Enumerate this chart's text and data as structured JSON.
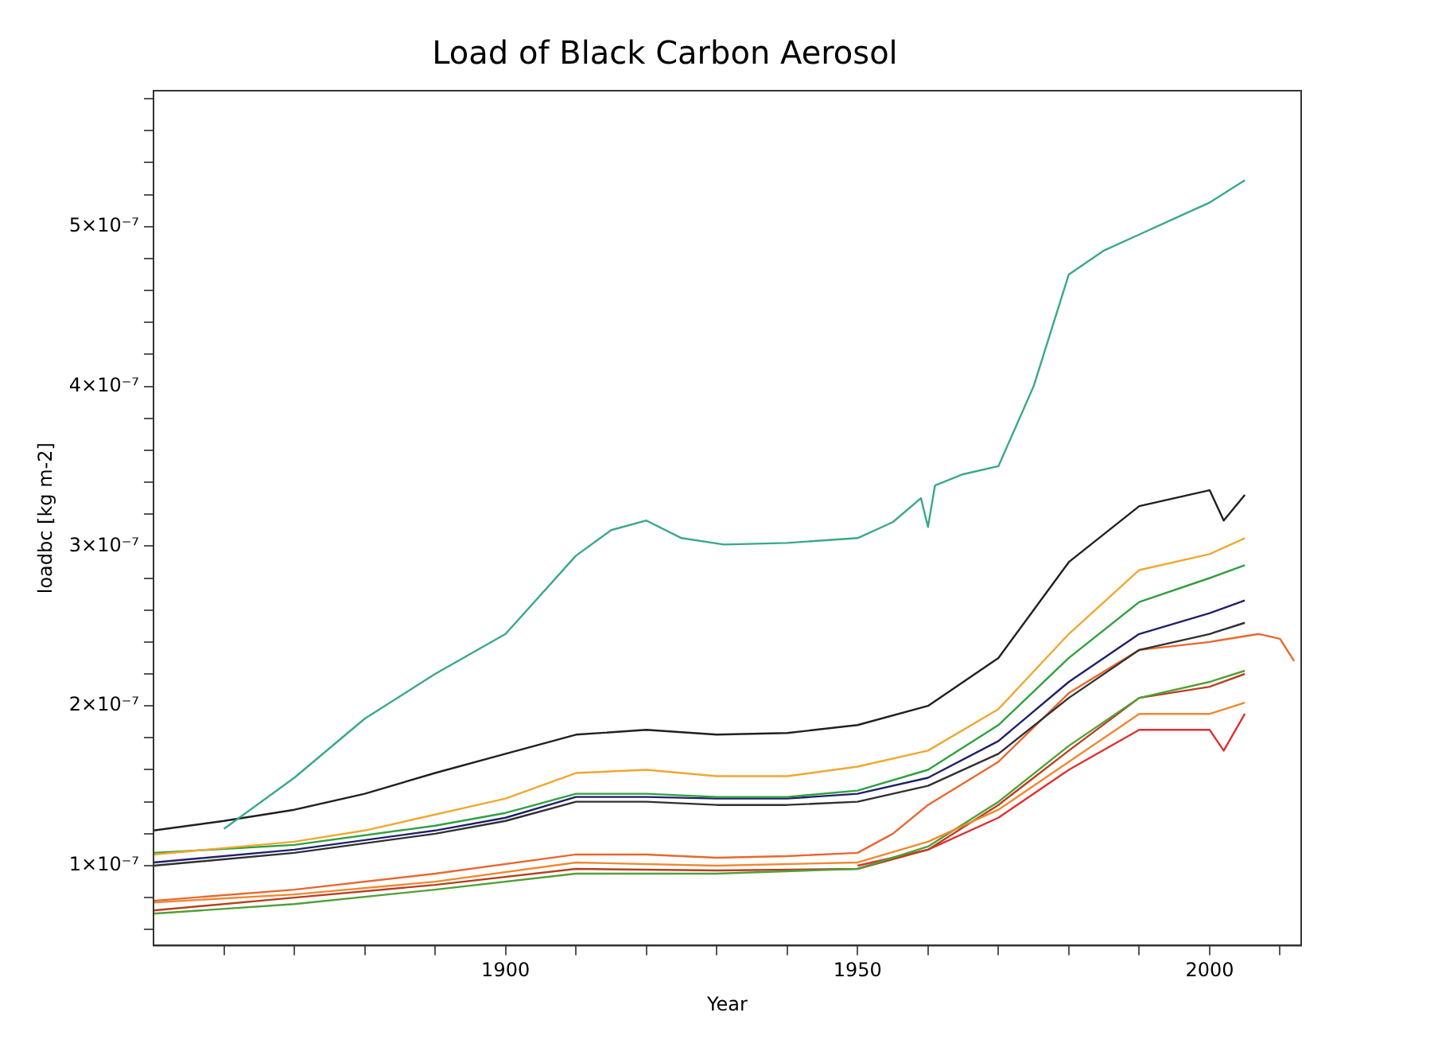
{
  "chart_data": {
    "type": "line",
    "title": "Load of Black Carbon Aerosol",
    "xlabel": "Year",
    "ylabel": "loadbc [kg m-2]",
    "grid": false,
    "legend": false,
    "marker": "none",
    "line_style": "solid",
    "xlim": [
      1850,
      2013
    ],
    "ylim": [
      5e-08,
      5.85e-07
    ],
    "xticks": [
      {
        "value": 1860,
        "label": null
      },
      {
        "value": 1870,
        "label": null
      },
      {
        "value": 1880,
        "label": null
      },
      {
        "value": 1890,
        "label": null
      },
      1900,
      {
        "value": 1910,
        "label": null
      },
      {
        "value": 1920,
        "label": null
      },
      {
        "value": 1930,
        "label": null
      },
      {
        "value": 1940,
        "label": null
      },
      1950,
      {
        "value": 1960,
        "label": null
      },
      {
        "value": 1970,
        "label": null
      },
      {
        "value": 1980,
        "label": null
      },
      {
        "value": 1990,
        "label": null
      },
      2000,
      {
        "value": 2010,
        "label": null
      }
    ],
    "yticks": [
      {
        "value": 6e-08,
        "label": null
      },
      {
        "value": 8e-08,
        "label": null
      },
      {
        "value": 1e-07,
        "label": "1×10⁻⁷"
      },
      {
        "value": 1.2e-07,
        "label": null
      },
      {
        "value": 1.4e-07,
        "label": null
      },
      {
        "value": 1.6e-07,
        "label": null
      },
      {
        "value": 1.8e-07,
        "label": null
      },
      {
        "value": 2e-07,
        "label": "2×10⁻⁷"
      },
      {
        "value": 2.2e-07,
        "label": null
      },
      {
        "value": 2.4e-07,
        "label": null
      },
      {
        "value": 2.6e-07,
        "label": null
      },
      {
        "value": 2.8e-07,
        "label": null
      },
      {
        "value": 3e-07,
        "label": "3×10⁻⁷"
      },
      {
        "value": 3.2e-07,
        "label": null
      },
      {
        "value": 3.4e-07,
        "label": null
      },
      {
        "value": 3.6e-07,
        "label": null
      },
      {
        "value": 3.8e-07,
        "label": null
      },
      {
        "value": 4e-07,
        "label": "4×10⁻⁷"
      },
      {
        "value": 4.2e-07,
        "label": null
      },
      {
        "value": 4.4e-07,
        "label": null
      },
      {
        "value": 4.6e-07,
        "label": null
      },
      {
        "value": 4.8e-07,
        "label": null
      },
      {
        "value": 5e-07,
        "label": "5×10⁻⁷"
      },
      {
        "value": 5.2e-07,
        "label": null
      },
      {
        "value": 5.4e-07,
        "label": null
      },
      {
        "value": 5.6e-07,
        "label": null
      },
      {
        "value": 5.8e-07,
        "label": null
      }
    ],
    "series": [
      {
        "color": "#3aa88a",
        "x": [
          1860,
          1870,
          1880,
          1890,
          1900,
          1910,
          1915,
          1920,
          1925,
          1931,
          1940,
          1950,
          1955,
          1959,
          1960,
          1961,
          1965,
          1970,
          1975,
          1980,
          1985,
          1990,
          1995,
          2000,
          2005
        ],
        "values": [
          1.23e-07,
          1.55e-07,
          1.92e-07,
          2.2e-07,
          2.45e-07,
          2.94e-07,
          3.1e-07,
          3.16e-07,
          3.05e-07,
          3.01e-07,
          3.02e-07,
          3.05e-07,
          3.15e-07,
          3.3e-07,
          3.12e-07,
          3.38e-07,
          3.45e-07,
          3.5e-07,
          4e-07,
          4.7e-07,
          4.85e-07,
          4.95e-07,
          5.05e-07,
          5.15e-07,
          5.29e-07
        ]
      },
      {
        "color": "#202020",
        "x": [
          1850,
          1860,
          1870,
          1880,
          1890,
          1900,
          1910,
          1920,
          1930,
          1940,
          1950,
          1960,
          1970,
          1975,
          1980,
          1990,
          2000,
          2002,
          2005
        ],
        "values": [
          1.22e-07,
          1.28e-07,
          1.35e-07,
          1.45e-07,
          1.58e-07,
          1.7e-07,
          1.82e-07,
          1.85e-07,
          1.82e-07,
          1.83e-07,
          1.88e-07,
          2e-07,
          2.3e-07,
          2.6e-07,
          2.9e-07,
          3.25e-07,
          3.35e-07,
          3.16e-07,
          3.32e-07
        ]
      },
      {
        "color": "#f0a830",
        "x": [
          1850,
          1870,
          1880,
          1890,
          1900,
          1910,
          1920,
          1930,
          1940,
          1950,
          1960,
          1970,
          1980,
          1990,
          2000,
          2005
        ],
        "values": [
          1.07e-07,
          1.15e-07,
          1.22e-07,
          1.32e-07,
          1.42e-07,
          1.58e-07,
          1.6e-07,
          1.56e-07,
          1.56e-07,
          1.62e-07,
          1.72e-07,
          1.98e-07,
          2.45e-07,
          2.85e-07,
          2.95e-07,
          3.05e-07
        ]
      },
      {
        "color": "#30a040",
        "x": [
          1850,
          1870,
          1890,
          1900,
          1910,
          1920,
          1930,
          1940,
          1950,
          1960,
          1970,
          1980,
          1990,
          2000,
          2005
        ],
        "values": [
          1.08e-07,
          1.13e-07,
          1.25e-07,
          1.33e-07,
          1.45e-07,
          1.45e-07,
          1.43e-07,
          1.43e-07,
          1.47e-07,
          1.6e-07,
          1.88e-07,
          2.3e-07,
          2.65e-07,
          2.8e-07,
          2.88e-07
        ]
      },
      {
        "color": "#202068",
        "x": [
          1850,
          1870,
          1890,
          1900,
          1910,
          1920,
          1930,
          1940,
          1950,
          1960,
          1970,
          1980,
          1990,
          2000,
          2005
        ],
        "values": [
          1.02e-07,
          1.1e-07,
          1.22e-07,
          1.3e-07,
          1.43e-07,
          1.43e-07,
          1.42e-07,
          1.42e-07,
          1.45e-07,
          1.55e-07,
          1.78e-07,
          2.15e-07,
          2.45e-07,
          2.58e-07,
          2.66e-07
        ]
      },
      {
        "color": "#303030",
        "x": [
          1850,
          1870,
          1890,
          1900,
          1910,
          1920,
          1930,
          1940,
          1950,
          1960,
          1970,
          1980,
          1990,
          2000,
          2005
        ],
        "values": [
          1e-07,
          1.08e-07,
          1.2e-07,
          1.28e-07,
          1.4e-07,
          1.4e-07,
          1.38e-07,
          1.38e-07,
          1.4e-07,
          1.5e-07,
          1.7e-07,
          2.05e-07,
          2.35e-07,
          2.45e-07,
          2.52e-07
        ]
      },
      {
        "color": "#e86830",
        "x": [
          1850,
          1870,
          1890,
          1910,
          1920,
          1930,
          1940,
          1950,
          1955,
          1960,
          1970,
          1980,
          1990,
          2000,
          2007,
          2010,
          2012
        ],
        "values": [
          7.8e-08,
          8.5e-08,
          9.5e-08,
          1.07e-07,
          1.07e-07,
          1.05e-07,
          1.06e-07,
          1.08e-07,
          1.2e-07,
          1.38e-07,
          1.65e-07,
          2.08e-07,
          2.35e-07,
          2.4e-07,
          2.45e-07,
          2.42e-07,
          2.28e-07
        ]
      },
      {
        "color": "#f08830",
        "x": [
          1850,
          1870,
          1890,
          1910,
          1930,
          1950,
          1960,
          1970,
          1980,
          1990,
          2000,
          2005
        ],
        "values": [
          7.7e-08,
          8.2e-08,
          9e-08,
          1.02e-07,
          1e-07,
          1.02e-07,
          1.15e-07,
          1.35e-07,
          1.65e-07,
          1.95e-07,
          1.95e-07,
          2.02e-07
        ]
      },
      {
        "color": "#50a038",
        "x": [
          1850,
          1870,
          1890,
          1910,
          1930,
          1950,
          1960,
          1970,
          1980,
          1990,
          2000,
          2005
        ],
        "values": [
          7e-08,
          7.6e-08,
          8.5e-08,
          9.5e-08,
          9.5e-08,
          9.8e-08,
          1.12e-07,
          1.4e-07,
          1.75e-07,
          2.05e-07,
          2.15e-07,
          2.22e-07
        ]
      },
      {
        "color": "#b84020",
        "x": [
          1850,
          1870,
          1890,
          1910,
          1930,
          1950,
          1960,
          1970,
          1980,
          1990,
          2000,
          2005
        ],
        "values": [
          7.2e-08,
          8e-08,
          8.8e-08,
          9.8e-08,
          9.7e-08,
          9.8e-08,
          1.1e-07,
          1.38e-07,
          1.72e-07,
          2.05e-07,
          2.12e-07,
          2.2e-07
        ]
      },
      {
        "color": "#e03030",
        "x": [
          1950,
          1960,
          1970,
          1980,
          1990,
          2000,
          2002,
          2005
        ],
        "values": [
          1e-07,
          1.1e-07,
          1.3e-07,
          1.6e-07,
          1.85e-07,
          1.85e-07,
          1.72e-07,
          1.95e-07
        ]
      }
    ]
  }
}
